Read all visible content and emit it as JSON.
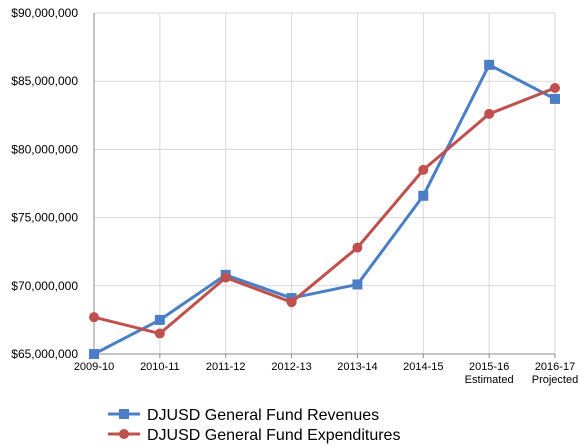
{
  "chart_data": {
    "type": "line",
    "categories": [
      [
        "2009-10"
      ],
      [
        "2010-11"
      ],
      [
        "2011-12"
      ],
      [
        "2012-13"
      ],
      [
        "2013-14"
      ],
      [
        "2014-15"
      ],
      [
        "2015-16",
        "Estimated"
      ],
      [
        "2016-17",
        "Projected"
      ]
    ],
    "series": [
      {
        "name": "DJUSD General Fund Revenues",
        "color": "#4a7fc8",
        "marker": "square",
        "values": [
          65000000,
          67500000,
          70800000,
          69100000,
          70100000,
          76600000,
          86200000,
          83700000
        ]
      },
      {
        "name": "DJUSD General Fund Expenditures",
        "color": "#c0504d",
        "marker": "circle",
        "values": [
          67700000,
          66500000,
          70600000,
          68800000,
          72800000,
          78500000,
          82600000,
          84500000
        ]
      }
    ],
    "y_ticks": [
      "$65,000,000",
      "$70,000,000",
      "$75,000,000",
      "$80,000,000",
      "$85,000,000",
      "$90,000,000"
    ],
    "ylim": [
      65000000,
      90000000
    ],
    "grid": "horizontal and vertical",
    "legend": "bottom"
  }
}
